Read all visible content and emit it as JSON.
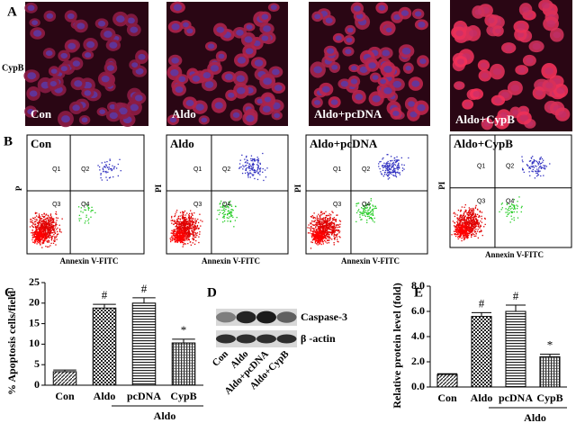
{
  "panel_a": {
    "label": "A",
    "row_label": "CypB",
    "images": [
      "Con",
      "Aldo",
      "Aldo+pcDNA",
      "Aldo+CypB"
    ]
  },
  "panel_b": {
    "label": "B",
    "x_label": "Annexin V-FITC",
    "quadrants": [
      "Q1",
      "Q2",
      "Q3",
      "Q4"
    ],
    "plots": [
      {
        "title": "Con",
        "y_label": "P"
      },
      {
        "title": "Aldo",
        "y_label": "PI"
      },
      {
        "title": "Aldo+pcDNA",
        "y_label": "PI"
      },
      {
        "title": "Aldo+CypB",
        "y_label": "PI"
      }
    ]
  },
  "panel_d": {
    "label": "D",
    "bands": [
      "Caspase-3",
      "β -actin"
    ],
    "lanes": [
      "Con",
      "Aldo",
      "Aldo+pcDNA",
      "Aldo+CypB"
    ]
  },
  "chart_data": [
    {
      "type": "bar",
      "label": "C",
      "y_label": "% Apoptosis cells/field",
      "categories": [
        "Con",
        "Aldo",
        "pcDNA",
        "CypB"
      ],
      "group_label": "Aldo",
      "values": [
        3.3,
        18.8,
        20,
        10.3
      ],
      "errors": [
        0.4,
        0.9,
        1.3,
        0.9
      ],
      "markers": [
        null,
        "#",
        "#",
        "*"
      ],
      "ylim": [
        0,
        25
      ],
      "yticks": [
        0,
        5,
        10,
        15,
        20,
        25
      ]
    },
    {
      "type": "bar",
      "label": "E",
      "y_label": "Relative protein level (fold)",
      "categories": [
        "Con",
        "Aldo",
        "pcDNA",
        "CypB"
      ],
      "group_label": "Aldo",
      "values": [
        1.0,
        5.6,
        6.0,
        2.4
      ],
      "errors": [
        0.05,
        0.3,
        0.5,
        0.2
      ],
      "markers": [
        null,
        "#",
        "#",
        "*"
      ],
      "ylim": [
        0,
        8
      ],
      "yticks": [
        {
          "value": 0,
          "label": "0.0"
        },
        {
          "value": 2,
          "label": "2.0"
        },
        {
          "value": 4,
          "label": "4.0"
        },
        {
          "value": 6,
          "label": "6.0"
        },
        {
          "value": 8,
          "label": "8.0"
        }
      ]
    }
  ]
}
